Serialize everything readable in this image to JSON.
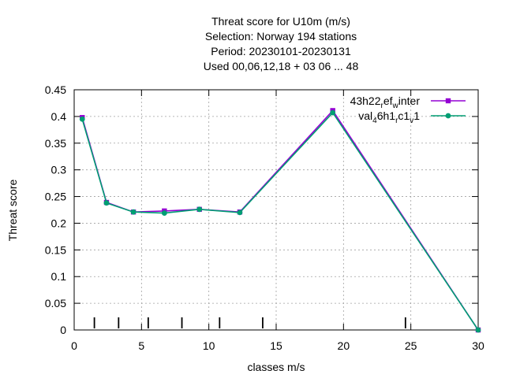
{
  "chart_data": {
    "type": "line",
    "title_lines": [
      "Threat score  for U10m (m/s)",
      "Selection: Norway    194 stations",
      "Period: 20230101-20230131",
      "Used  00,06,12,18  + 03 06 ... 48"
    ],
    "xlabel": "classes m/s",
    "ylabel": "Threat score",
    "xlim": [
      0,
      30
    ],
    "ylim": [
      0,
      0.45
    ],
    "xticks": [
      0,
      5,
      10,
      15,
      20,
      25,
      30
    ],
    "yticks": [
      0,
      0.05,
      0.1,
      0.15,
      0.2,
      0.25,
      0.3,
      0.35,
      0.4,
      0.45
    ],
    "grid": true,
    "legend_position": "top-right",
    "class_markers": [
      1.5,
      3.3,
      5.5,
      8.0,
      10.8,
      14.0,
      24.6
    ],
    "series": [
      {
        "legend_parts": [
          [
            "43h22",
            ""
          ],
          [
            "r",
            "sub"
          ],
          [
            "ef",
            ""
          ],
          [
            "w",
            "sub"
          ],
          [
            "inter",
            ""
          ]
        ],
        "color": "#9400d3",
        "marker": "square",
        "x": [
          0.6,
          2.4,
          4.4,
          6.7,
          9.3,
          12.3,
          19.2,
          30.0
        ],
        "y": [
          0.398,
          0.239,
          0.221,
          0.223,
          0.226,
          0.221,
          0.411,
          0.0
        ]
      },
      {
        "legend_parts": [
          [
            "val",
            ""
          ],
          [
            "4",
            "sub"
          ],
          [
            "6h1",
            ""
          ],
          [
            "r",
            "sub"
          ],
          [
            "c1",
            ""
          ],
          [
            "v",
            "sub"
          ],
          [
            "1",
            ""
          ]
        ],
        "color": "#009e73",
        "marker": "circle",
        "x": [
          0.6,
          2.4,
          4.4,
          6.7,
          9.3,
          12.3,
          19.2,
          30.0
        ],
        "y": [
          0.395,
          0.238,
          0.221,
          0.219,
          0.226,
          0.22,
          0.407,
          0.0
        ]
      }
    ]
  }
}
